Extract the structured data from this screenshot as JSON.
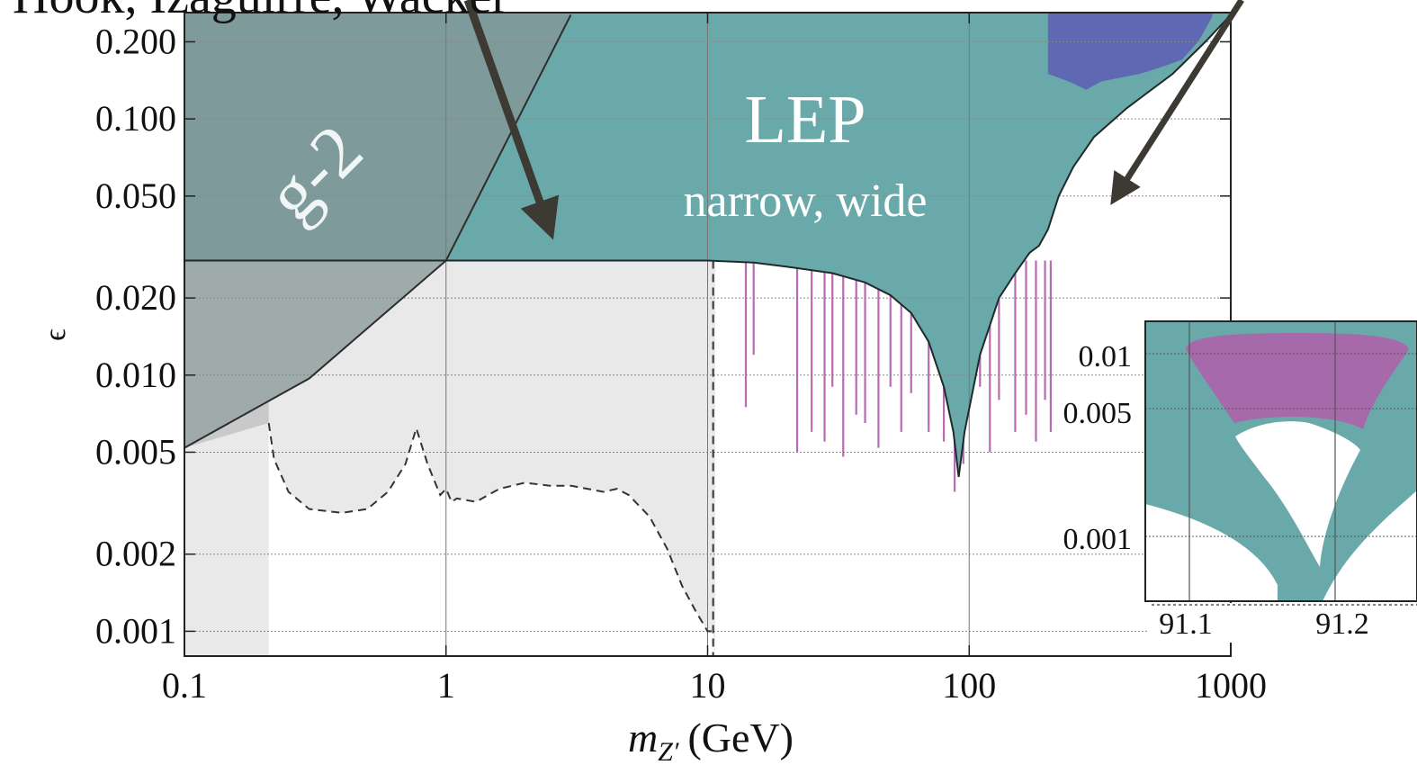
{
  "header_fragment": "Hook, Izaguirre, Wacker",
  "chart_data": [
    {
      "type": "area",
      "title": "",
      "xlabel": "(GeV)",
      "xlabel_symbol": "m",
      "xlabel_subscript": "Z′",
      "ylabel": "ϵ",
      "x_scale": "log",
      "y_scale": "log",
      "xlim": [
        0.1,
        1000
      ],
      "ylim": [
        0.0008,
        0.26
      ],
      "x_ticks": [
        0.1,
        1,
        10,
        100,
        1000
      ],
      "x_tick_labels": [
        "0.1",
        "1",
        "10",
        "100",
        "1000"
      ],
      "y_ticks": [
        0.001,
        0.002,
        0.005,
        0.01,
        0.02,
        0.05,
        0.1,
        0.2
      ],
      "y_tick_labels": [
        "0.001",
        "0.002",
        "0.005",
        "0.010",
        "0.020",
        "0.050",
        "0.100",
        "0.200"
      ],
      "grid": true,
      "annotations": {
        "g2": "g-2",
        "lep": "LEP",
        "lep_sub": "narrow, wide"
      },
      "colors": {
        "lep": "#6aa9a9",
        "g2": "#7e9a9a",
        "light_gray": "#e9e9e9",
        "mid_gray": "#c9c9c9",
        "blue": "#5f68b2",
        "magenta": "#a2399a",
        "arrow": "#3d3a34"
      },
      "series": [
        {
          "name": "g-2",
          "x": [
            0.1,
            0.3,
            1,
            3
          ],
          "y": [
            0.0052,
            0.0097,
            0.028,
            0.255
          ]
        },
        {
          "name": "LEP",
          "boundary_x": [
            0.1,
            1,
            10,
            15,
            20,
            30,
            40,
            50,
            60,
            70,
            80,
            87,
            91.2,
            96,
            110,
            130,
            150,
            170,
            185,
            200,
            220,
            250,
            300,
            400,
            600,
            800,
            1000
          ],
          "boundary_y": [
            0.028,
            0.028,
            0.028,
            0.0275,
            0.0265,
            0.025,
            0.023,
            0.0205,
            0.0175,
            0.0135,
            0.009,
            0.006,
            0.004,
            0.006,
            0.012,
            0.02,
            0.025,
            0.03,
            0.032,
            0.037,
            0.05,
            0.065,
            0.085,
            0.11,
            0.15,
            0.2,
            0.255
          ]
        },
        {
          "name": "dashed projection",
          "x": [
            0.21,
            0.22,
            0.25,
            0.3,
            0.4,
            0.5,
            0.6,
            0.7,
            0.77,
            0.85,
            0.95,
            1.0,
            1.05,
            1.1,
            1.3,
            1.6,
            2,
            2.5,
            3,
            4,
            4.5,
            5,
            6,
            7,
            8,
            9,
            10,
            10.5
          ],
          "y": [
            0.0065,
            0.0047,
            0.0035,
            0.003,
            0.0029,
            0.003,
            0.0035,
            0.0045,
            0.0062,
            0.0045,
            0.0034,
            0.0036,
            0.0032,
            0.0033,
            0.0032,
            0.0036,
            0.0038,
            0.0037,
            0.0037,
            0.0035,
            0.0036,
            0.0034,
            0.0028,
            0.0021,
            0.0015,
            0.0012,
            0.001,
            0.001
          ]
        },
        {
          "name": "high-mass blue region",
          "boundary_x": [
            200,
            240,
            280,
            320,
            380,
            450,
            550,
            650,
            750,
            850
          ],
          "boundary_y": [
            0.15,
            0.14,
            0.13,
            0.14,
            0.145,
            0.15,
            0.16,
            0.17,
            0.2,
            0.25
          ]
        }
      ]
    },
    {
      "type": "area",
      "title": "",
      "x_ticks": [
        91.1,
        91.2
      ],
      "x_tick_labels": [
        "91.1",
        "91.2"
      ],
      "y_ticks": [
        0.01,
        0.005,
        0.001
      ],
      "y_tick_labels": [
        "0.01",
        "0.005",
        "0.001"
      ],
      "xlim": [
        91.07,
        91.22
      ],
      "grid": true
    }
  ]
}
